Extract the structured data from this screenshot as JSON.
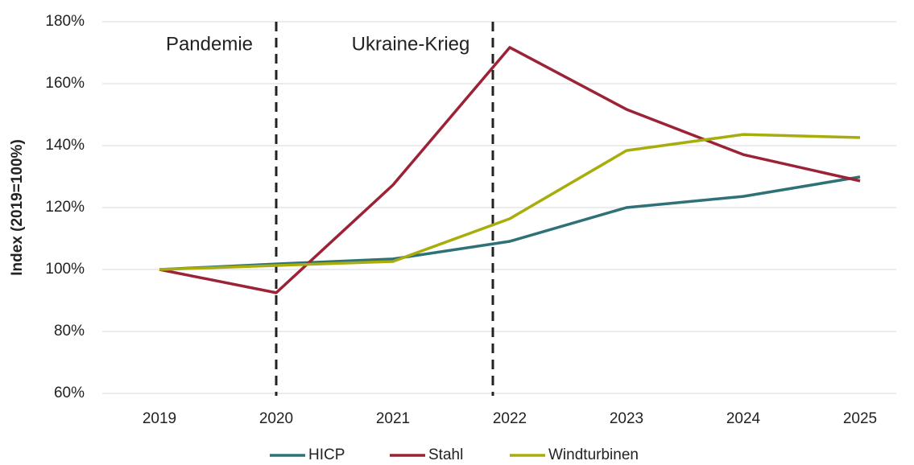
{
  "chart_data": {
    "type": "line",
    "y_label": "Index (2019=100%)",
    "categories": [
      "2019",
      "2020",
      "2021",
      "2022",
      "2023",
      "2024",
      "2025"
    ],
    "series": [
      {
        "name": "HICP",
        "color": "#2e7176",
        "values": [
          100,
          101.8,
          103.4,
          109.1,
          120,
          123.6,
          129.9
        ]
      },
      {
        "name": "Stahl",
        "color": "#9b2335",
        "values": [
          100,
          92.5,
          127.3,
          171.7,
          151.7,
          137.1,
          128.6
        ]
      },
      {
        "name": "Windturbinen",
        "color": "#a8ad0c",
        "values": [
          100,
          101.3,
          102.6,
          116.4,
          138.4,
          143.6,
          142.6
        ]
      }
    ],
    "annotations": [
      "Pandemie",
      "Ukraine-Krieg"
    ],
    "ylim": [
      60,
      180
    ],
    "yticks": [
      {
        "value": 60,
        "label": "60%"
      },
      {
        "value": 80,
        "label": "80%"
      },
      {
        "value": 100,
        "label": "100%"
      },
      {
        "value": 120,
        "label": "120%"
      },
      {
        "value": 140,
        "label": "140%"
      },
      {
        "value": 160,
        "label": "160%"
      },
      {
        "value": 180,
        "label": "180%"
      }
    ],
    "grid": true,
    "legend": "bottom"
  }
}
